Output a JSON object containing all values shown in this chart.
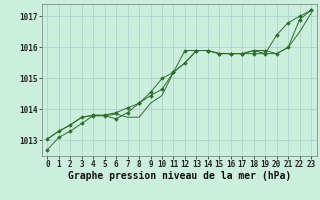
{
  "title": "Graphe pression niveau de la mer (hPa)",
  "background_color": "#cceedd",
  "grid_color": "#aacccc",
  "line_color": "#2d6e2d",
  "x_labels": [
    "0",
    "1",
    "2",
    "3",
    "4",
    "5",
    "6",
    "7",
    "8",
    "9",
    "10",
    "11",
    "12",
    "13",
    "14",
    "15",
    "16",
    "17",
    "18",
    "19",
    "20",
    "21",
    "22",
    "23"
  ],
  "ylim": [
    1012.5,
    1017.4
  ],
  "yticks": [
    1013,
    1014,
    1015,
    1016,
    1017
  ],
  "series": [
    [
      1012.7,
      1013.1,
      1013.3,
      1013.55,
      1013.8,
      1013.8,
      1013.7,
      1013.9,
      1014.2,
      1014.55,
      1015.0,
      1015.2,
      1015.9,
      1015.9,
      1015.9,
      1015.8,
      1015.8,
      1015.8,
      1015.8,
      1015.8,
      1016.4,
      1016.8,
      1017.0,
      1017.2
    ],
    [
      1013.05,
      1013.3,
      1013.5,
      1013.75,
      1013.8,
      1013.8,
      1013.85,
      1013.75,
      1013.75,
      1014.2,
      1014.45,
      1015.2,
      1015.5,
      1015.9,
      1015.9,
      1015.8,
      1015.8,
      1015.8,
      1015.9,
      1015.8,
      1015.8,
      1016.0,
      1016.5,
      1017.1
    ],
    [
      1013.05,
      1013.3,
      1013.5,
      1013.75,
      1013.82,
      1013.82,
      1013.9,
      1014.05,
      1014.2,
      1014.45,
      1014.65,
      1015.2,
      1015.5,
      1015.9,
      1015.9,
      1015.8,
      1015.8,
      1015.8,
      1015.9,
      1015.9,
      1015.8,
      1016.0,
      1016.9,
      1017.2
    ]
  ],
  "tick_fontsize": 5.5,
  "title_fontsize": 7.0
}
